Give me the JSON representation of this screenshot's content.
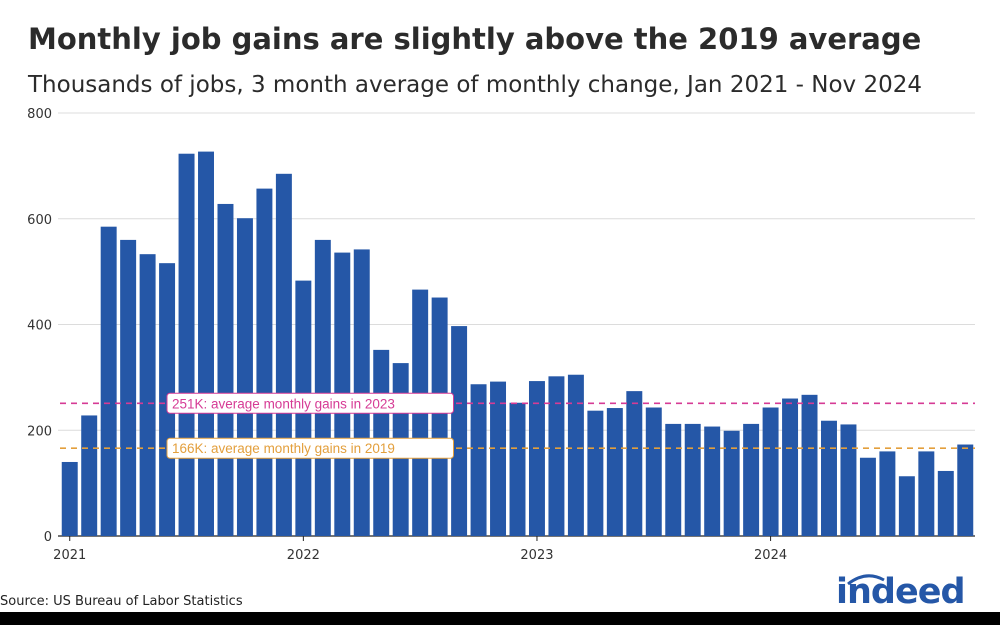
{
  "header": {
    "title": "Monthly job gains are slightly above the 2019 average",
    "subtitle": "Thousands of jobs, 3 month average of monthly change, Jan 2021 - Nov 2024"
  },
  "footer": {
    "source": "Source: US Bureau of Labor Statistics",
    "logo_text": "indeed"
  },
  "chart_data": {
    "type": "bar",
    "categories": [
      "2021-01",
      "2021-02",
      "2021-03",
      "2021-04",
      "2021-05",
      "2021-06",
      "2021-07",
      "2021-08",
      "2021-09",
      "2021-10",
      "2021-11",
      "2021-12",
      "2022-01",
      "2022-02",
      "2022-03",
      "2022-04",
      "2022-05",
      "2022-06",
      "2022-07",
      "2022-08",
      "2022-09",
      "2022-10",
      "2022-11",
      "2022-12",
      "2023-01",
      "2023-02",
      "2023-03",
      "2023-04",
      "2023-05",
      "2023-06",
      "2023-07",
      "2023-08",
      "2023-09",
      "2023-10",
      "2023-11",
      "2023-12",
      "2024-01",
      "2024-02",
      "2024-03",
      "2024-04",
      "2024-05",
      "2024-06",
      "2024-07",
      "2024-08",
      "2024-09",
      "2024-10",
      "2024-11"
    ],
    "values": [
      140,
      228,
      585,
      560,
      533,
      516,
      723,
      727,
      628,
      601,
      657,
      685,
      483,
      560,
      536,
      542,
      352,
      327,
      466,
      451,
      397,
      287,
      292,
      252,
      293,
      302,
      305,
      237,
      242,
      274,
      243,
      212,
      212,
      207,
      199,
      212,
      243,
      260,
      267,
      218,
      211,
      148,
      160,
      113,
      160,
      123,
      173
    ],
    "x_tick_labels": [
      "2021",
      "2022",
      "2023",
      "2024"
    ],
    "y_ticks": [
      0,
      200,
      400,
      600,
      800
    ],
    "ylim": [
      0,
      800
    ],
    "grid": "horizontal",
    "bar_color": "#2557a7",
    "reference_lines": [
      {
        "value": 251,
        "label": "251K: average monthly gains in 2023",
        "color": "#d63b95"
      },
      {
        "value": 166,
        "label": "166K: average monthly gains in 2019",
        "color": "#e39f3c"
      }
    ]
  }
}
